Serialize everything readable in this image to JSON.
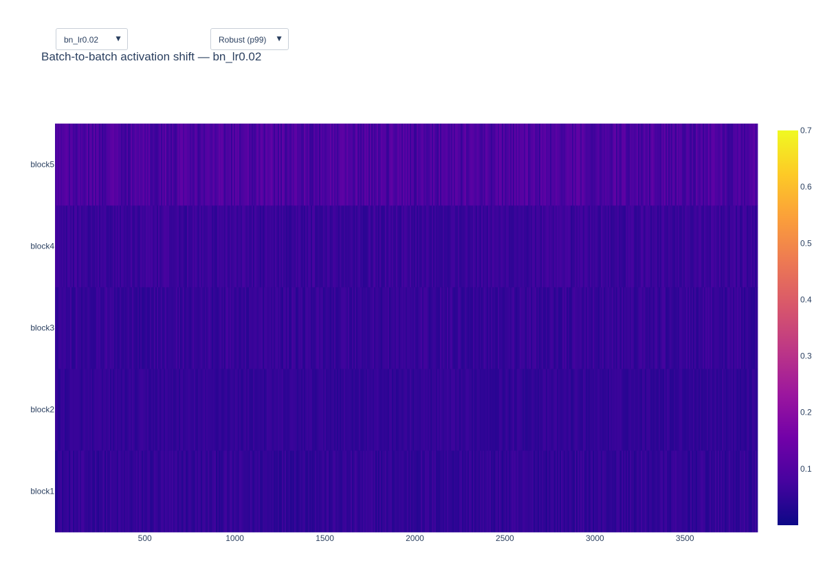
{
  "controls": {
    "run_dropdown": {
      "selected": "bn_lr0.02"
    },
    "scale_dropdown": {
      "selected": "Robust (p99)"
    }
  },
  "chart_data": {
    "type": "heatmap",
    "title": "Batch-to-batch activation shift — bn_lr0.02",
    "xlabel": "",
    "ylabel": "",
    "x_range": [
      1,
      3900
    ],
    "x_ticks": [
      500,
      1000,
      1500,
      2000,
      2500,
      3000,
      3500
    ],
    "y_categories": [
      "block1",
      "block2",
      "block3",
      "block4",
      "block5"
    ],
    "row_mean_values": [
      0.05,
      0.05,
      0.055,
      0.06,
      0.09
    ],
    "row_noise": [
      0.02,
      0.015,
      0.02,
      0.02,
      0.035
    ],
    "colorscale": "Plasma",
    "zlim": [
      0,
      0.7
    ],
    "colorbar_ticks": [
      0.1,
      0.2,
      0.3,
      0.4,
      0.5,
      0.6,
      0.7
    ],
    "colorbar_tick_labels": [
      "0.1",
      "0.2",
      "0.3",
      "0.4",
      "0.5",
      "0.6",
      "0.7"
    ],
    "grid": false
  }
}
